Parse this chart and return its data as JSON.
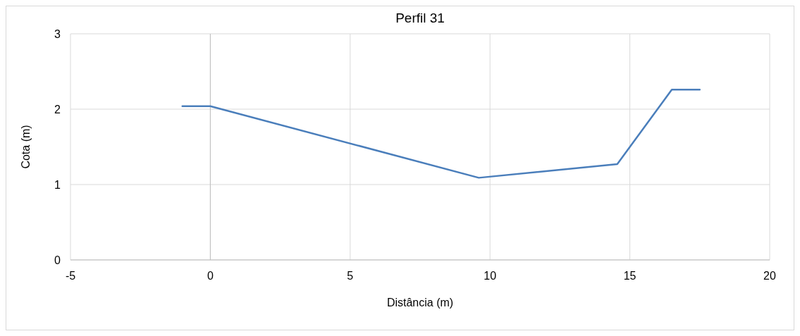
{
  "chart_data": {
    "type": "line",
    "title": "Perfil 31",
    "xlabel": "Distância (m)",
    "ylabel": "Cota (m)",
    "x": [
      -1,
      0,
      9.6,
      14.55,
      16.5,
      17.5
    ],
    "series": [
      {
        "color": "#4a7ebb",
        "values": [
          2.04,
          2.04,
          1.09,
          1.27,
          2.26,
          2.26
        ]
      }
    ],
    "xlim": [
      -5,
      20
    ],
    "xticks": [
      -5,
      0,
      5,
      10,
      15,
      20
    ],
    "ylim": [
      0,
      3
    ],
    "yticks": [
      0,
      1,
      2,
      3
    ],
    "grid": true,
    "marker": "none",
    "line_style": "solid"
  }
}
